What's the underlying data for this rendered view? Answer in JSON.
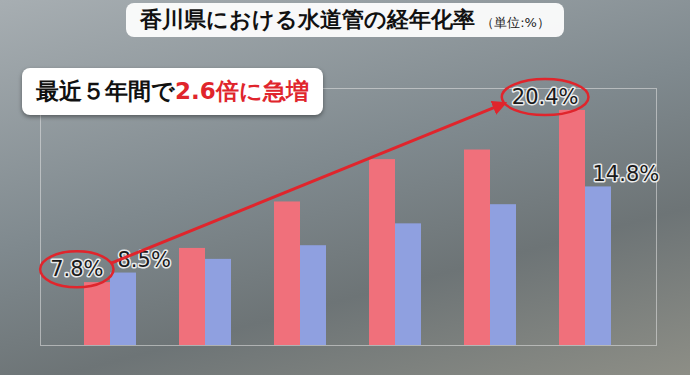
{
  "chart_data": {
    "type": "bar",
    "title": "香川県における水道管の経年化率",
    "subtitle": "（単位:%）",
    "annotation": "最近５年間で2.6倍に急増",
    "annotation_highlight": "2.6倍に急増",
    "categories": [
      null,
      null,
      null,
      null,
      null,
      null
    ],
    "series": [
      {
        "color": "#f0707b",
        "values": [
          7.8,
          10.3,
          13.7,
          16.8,
          17.5,
          20.4
        ],
        "value_labels": [
          "7.8%",
          null,
          null,
          null,
          null,
          "20.4%"
        ]
      },
      {
        "color": "#8fa0e0",
        "values": [
          8.5,
          9.5,
          10.5,
          12.1,
          13.5,
          14.8
        ],
        "value_labels": [
          "8.5%",
          null,
          null,
          null,
          null,
          "14.8%"
        ]
      }
    ],
    "ylim": [
      3.2,
      22
    ],
    "yticks": [],
    "grid": false,
    "data_labels": true,
    "tick_labels": false
  }
}
